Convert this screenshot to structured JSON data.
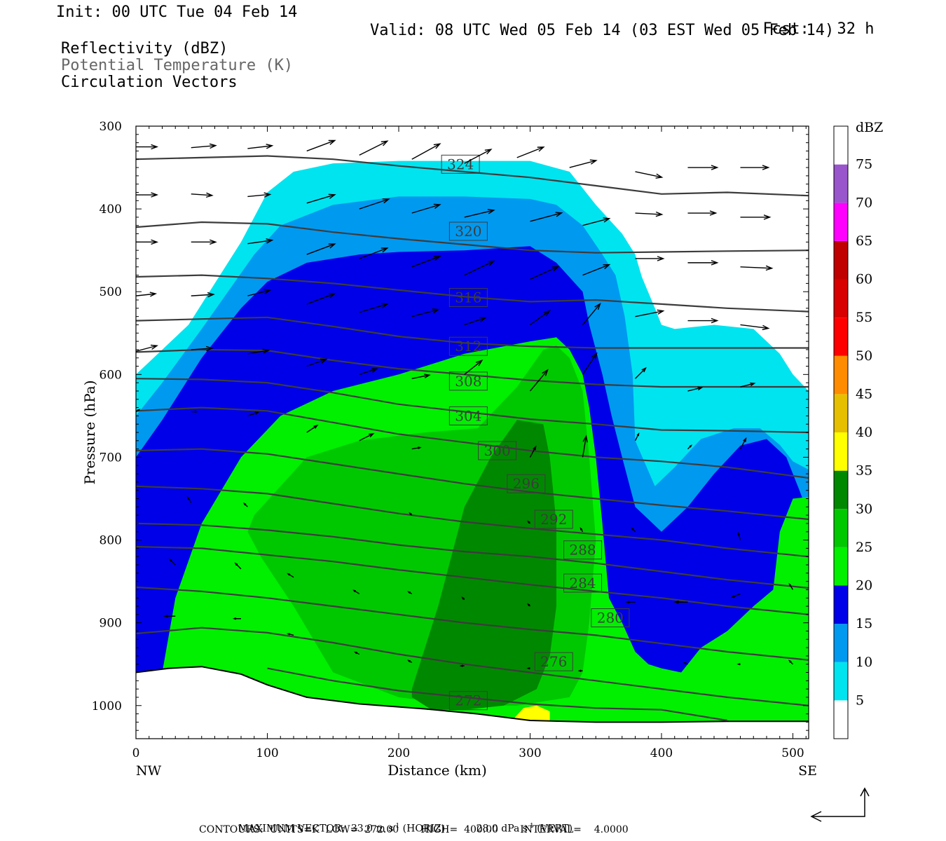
{
  "header": {
    "init": "Init: 00 UTC Tue 04 Feb 14",
    "fcst_label": "Fcst:",
    "fcst_value": "32 h",
    "valid": "Valid: 08 UTC Wed 05 Feb 14 (03 EST Wed 05 Feb 14)",
    "fields": [
      "Reflectivity (dBZ)",
      "Potential Temperature (K)",
      "Circulation Vectors"
    ]
  },
  "footer": {
    "max_vector_label": "MAXIMUM VECTOR:",
    "horiz": "33.0 m s",
    "horiz_unit": "(HORIZ)",
    "vert": "28.0 dPa s",
    "vert_unit": "(VERT)",
    "exp": "-1",
    "contours": "CONTOURS:  UNITS=K  LOW=  272.00       HIGH=  400.00       INTERVAL=    4.0000"
  },
  "colors": {
    "theta_line": "#3c3c3c",
    "dbz_5": "#00e4f0",
    "dbz_10": "#0099f0",
    "dbz_15": "#0000e8",
    "dbz_20": "#00f000",
    "dbz_25": "#00c800",
    "dbz_30": "#008800",
    "dbz_35": "#ffff00"
  },
  "chart_data": {
    "type": "contour-cross-section",
    "xlabel": "Distance (km)",
    "ylabel": "Pressure (hPa)",
    "xlim": [
      0,
      512
    ],
    "ylim": [
      1040,
      300
    ],
    "x_ticks": [
      0,
      100,
      200,
      300,
      400,
      500
    ],
    "y_ticks": [
      300,
      400,
      500,
      600,
      700,
      800,
      900,
      1000
    ],
    "x_end_labels": [
      "NW",
      "SE"
    ],
    "colorbar": {
      "label": "dBZ",
      "levels": [
        5,
        10,
        15,
        20,
        25,
        30,
        35,
        40,
        45,
        50,
        55,
        60,
        65,
        70,
        75
      ],
      "colors": [
        "#ffffff",
        "#00e4f0",
        "#0099f0",
        "#0000e8",
        "#00f000",
        "#00c800",
        "#008800",
        "#ffff00",
        "#e6c000",
        "#ff8c00",
        "#ff0000",
        "#d80000",
        "#c00000",
        "#ff00ff",
        "#9955cc",
        "#ffffff"
      ]
    },
    "theta_contours": [
      {
        "label": "324",
        "x": [
          0,
          50,
          100,
          150,
          200,
          250,
          300,
          350,
          400,
          450,
          512
        ],
        "p": [
          340,
          338,
          336,
          340,
          348,
          355,
          362,
          372,
          382,
          380,
          384
        ],
        "label_at": [
          247,
          346
        ]
      },
      {
        "label": "320",
        "x": [
          0,
          50,
          100,
          150,
          200,
          250,
          300,
          350,
          400,
          450,
          512
        ],
        "p": [
          422,
          416,
          418,
          428,
          436,
          443,
          450,
          453,
          452,
          451,
          450
        ],
        "label_at": [
          253,
          427
        ]
      },
      {
        "label": "316",
        "x": [
          0,
          50,
          100,
          150,
          200,
          250,
          300,
          350,
          400,
          450,
          512
        ],
        "p": [
          482,
          480,
          484,
          490,
          498,
          506,
          512,
          510,
          515,
          520,
          524
        ],
        "label_at": [
          253,
          507
        ]
      },
      {
        "label": "312",
        "x": [
          0,
          50,
          100,
          150,
          200,
          250,
          300,
          350,
          400,
          450,
          512
        ],
        "p": [
          535,
          533,
          531,
          542,
          554,
          562,
          566,
          568,
          568,
          568,
          568
        ],
        "label_at": [
          253,
          566
        ]
      },
      {
        "label": "308",
        "x": [
          0,
          50,
          100,
          150,
          200,
          250,
          300,
          350,
          400,
          450,
          512
        ],
        "p": [
          573,
          570,
          571,
          583,
          593,
          600,
          607,
          612,
          615,
          615,
          615
        ],
        "label_at": [
          253,
          608
        ]
      },
      {
        "label": "304",
        "x": [
          0,
          50,
          100,
          150,
          200,
          250,
          300,
          350,
          400,
          450,
          512
        ],
        "p": [
          605,
          606,
          610,
          622,
          636,
          645,
          654,
          660,
          667,
          668,
          670
        ],
        "label_at": [
          253,
          650
        ]
      },
      {
        "label": "300",
        "x": [
          0,
          50,
          100,
          150,
          200,
          250,
          300,
          350,
          400,
          450,
          512
        ],
        "p": [
          644,
          640,
          644,
          658,
          672,
          682,
          692,
          700,
          705,
          712,
          725
        ],
        "label_at": [
          275,
          692
        ]
      },
      {
        "label": "296",
        "x": [
          0,
          50,
          100,
          150,
          200,
          250,
          300,
          350,
          400,
          450,
          512
        ],
        "p": [
          692,
          690,
          696,
          708,
          720,
          732,
          742,
          750,
          758,
          765,
          775
        ],
        "label_at": [
          297,
          732
        ]
      },
      {
        "label": "292",
        "x": [
          0,
          50,
          100,
          150,
          200,
          250,
          300,
          350,
          400,
          450,
          512
        ],
        "p": [
          735,
          738,
          744,
          756,
          768,
          778,
          786,
          793,
          800,
          810,
          820
        ],
        "label_at": [
          318,
          775
        ]
      },
      {
        "label": "288",
        "x": [
          0,
          50,
          100,
          150,
          200,
          250,
          300,
          350,
          400,
          450,
          512
        ],
        "p": [
          780,
          782,
          788,
          796,
          806,
          814,
          820,
          828,
          838,
          848,
          858
        ],
        "label_at": [
          340,
          812
        ]
      },
      {
        "label": "284",
        "x": [
          0,
          50,
          100,
          150,
          200,
          250,
          300,
          350,
          400,
          450,
          512
        ],
        "p": [
          808,
          810,
          818,
          826,
          836,
          845,
          854,
          862,
          870,
          880,
          890
        ],
        "label_at": [
          340,
          852
        ]
      },
      {
        "label": "280",
        "x": [
          0,
          50,
          100,
          150,
          200,
          250,
          300,
          350,
          400,
          450,
          512
        ],
        "p": [
          857,
          862,
          870,
          880,
          890,
          900,
          908,
          915,
          925,
          935,
          945
        ],
        "label_at": [
          361,
          894
        ]
      },
      {
        "label": "276",
        "x": [
          0,
          50,
          100,
          150,
          200,
          250,
          300,
          350,
          400,
          450,
          512
        ],
        "p": [
          913,
          906,
          912,
          924,
          938,
          950,
          960,
          970,
          980,
          990,
          1000
        ],
        "label_at": [
          318,
          947
        ]
      },
      {
        "label": "272",
        "x": [
          100,
          150,
          200,
          250,
          300,
          350,
          400,
          450
        ],
        "p": [
          955,
          970,
          982,
          990,
          998,
          1003,
          1005,
          1018
        ],
        "label_at": [
          253,
          994
        ]
      }
    ],
    "dbz_regions": [
      {
        "dbz": 5,
        "x": [
          0,
          10,
          40,
          60,
          80,
          100,
          120,
          150,
          200,
          250,
          300,
          330,
          350,
          370,
          380,
          385,
          395,
          400,
          410,
          440,
          470,
          490,
          500,
          512,
          512,
          0
        ],
        "p": [
          600,
          585,
          540,
          490,
          440,
          380,
          355,
          345,
          342,
          342,
          342,
          355,
          395,
          430,
          455,
          482,
          520,
          540,
          545,
          540,
          545,
          575,
          600,
          620,
          1040,
          1040
        ]
      },
      {
        "dbz": 10,
        "x": [
          0,
          20,
          50,
          70,
          90,
          110,
          150,
          200,
          250,
          300,
          320,
          340,
          355,
          365,
          372,
          378,
          380,
          395,
          410,
          430,
          455,
          475,
          490,
          500,
          512,
          512,
          0
        ],
        "p": [
          650,
          610,
          545,
          500,
          455,
          420,
          395,
          385,
          385,
          388,
          395,
          420,
          455,
          480,
          530,
          600,
          680,
          735,
          712,
          678,
          665,
          665,
          685,
          705,
          715,
          1040,
          1040
        ]
      },
      {
        "dbz": 15,
        "x": [
          0,
          20,
          50,
          80,
          100,
          130,
          170,
          200,
          250,
          300,
          320,
          340,
          345,
          355,
          362,
          370,
          380,
          390,
          400,
          420,
          440,
          460,
          480,
          495,
          505,
          512,
          512,
          0
        ],
        "p": [
          700,
          655,
          580,
          520,
          488,
          465,
          455,
          452,
          450,
          445,
          465,
          500,
          540,
          600,
          650,
          700,
          760,
          775,
          790,
          760,
          720,
          686,
          678,
          700,
          740,
          770,
          1040,
          1040
        ]
      },
      {
        "dbz": 20,
        "x": [
          0,
          20,
          30,
          50,
          80,
          110,
          150,
          200,
          250,
          300,
          320,
          330,
          340,
          345,
          350,
          355,
          360,
          370,
          380,
          390,
          400,
          415,
          430,
          450,
          470,
          485,
          490,
          500,
          512,
          512,
          0
        ],
        "p": [
          1040,
          960,
          870,
          780,
          700,
          650,
          620,
          600,
          575,
          560,
          555,
          570,
          600,
          640,
          700,
          780,
          870,
          900,
          935,
          950,
          955,
          960,
          930,
          910,
          880,
          860,
          790,
          750,
          748,
          1040,
          1040
        ]
      },
      {
        "dbz": 25,
        "x": [
          90,
          130,
          170,
          220,
          260,
          290,
          310,
          320,
          330,
          340,
          345,
          350,
          345,
          340,
          330,
          290,
          250,
          200,
          150,
          120,
          95,
          85
        ],
        "p": [
          770,
          700,
          680,
          670,
          665,
          615,
          570,
          565,
          580,
          620,
          700,
          800,
          900,
          960,
          990,
          1000,
          1000,
          990,
          960,
          880,
          820,
          790
        ]
      },
      {
        "dbz": 30,
        "x": [
          210,
          230,
          250,
          270,
          290,
          310,
          315,
          320,
          320,
          315,
          305,
          280,
          250,
          225,
          210
        ],
        "p": [
          980,
          880,
          760,
          700,
          655,
          660,
          700,
          780,
          880,
          940,
          980,
          1000,
          1005,
          1005,
          990
        ]
      },
      {
        "dbz": 35,
        "x": [
          285,
          295,
          305,
          315,
          315,
          285
        ],
        "p": [
          1020,
          1003,
          1000,
          1007,
          1020,
          1020
        ]
      }
    ],
    "vectors_note": "Circulation vectors (horizontal m s-1 / vertical dPa s-1)"
  }
}
